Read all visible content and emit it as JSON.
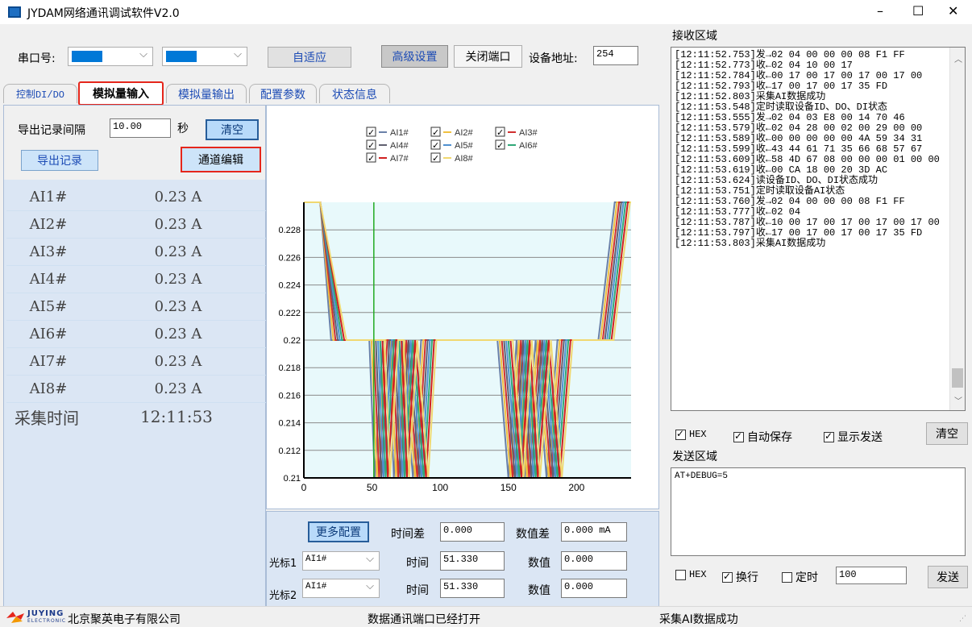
{
  "window": {
    "title": "JYDAM网络通讯调试软件V2.0",
    "minimize": "–",
    "maximize": "☐",
    "close": "✕"
  },
  "toolbar": {
    "port_label": "串口号:",
    "adapt_btn": "自适应",
    "advanced_btn": "高级设置",
    "close_port_btn": "关闭端口",
    "device_addr_label": "设备地址:",
    "device_addr": "254"
  },
  "tabs": [
    {
      "label": "控制DI/DO"
    },
    {
      "label": "模拟量输入"
    },
    {
      "label": "模拟量输出"
    },
    {
      "label": "配置参数"
    },
    {
      "label": "状态信息"
    }
  ],
  "left": {
    "interval_label": "导出记录间隔",
    "interval_value": "10.00",
    "interval_unit": "秒",
    "clear_btn": "清空",
    "export_btn": "导出记录",
    "channel_edit_btn": "通道编辑",
    "rows": [
      {
        "name": "AI1#",
        "value": "0.23 A"
      },
      {
        "name": "AI2#",
        "value": "0.23 A"
      },
      {
        "name": "AI3#",
        "value": "0.23 A"
      },
      {
        "name": "AI4#",
        "value": "0.23 A"
      },
      {
        "name": "AI5#",
        "value": "0.23 A"
      },
      {
        "name": "AI6#",
        "value": "0.23 A"
      },
      {
        "name": "AI7#",
        "value": "0.23 A"
      },
      {
        "name": "AI8#",
        "value": "0.23 A"
      }
    ],
    "time_label": "采集时间",
    "time_value": "12:11:53"
  },
  "chart_data": {
    "type": "line",
    "xlim": [
      0,
      240
    ],
    "ylim": [
      0.21,
      0.23
    ],
    "y_ticks": [
      "0.228",
      "0.226",
      "0.224",
      "0.222",
      "0.22",
      "0.218",
      "0.216",
      "0.214",
      "0.212",
      "0.21"
    ],
    "x_ticks": [
      "0",
      "50",
      "100",
      "150",
      "200"
    ],
    "legend": [
      {
        "name": "AI1#",
        "color": "#6a80a8"
      },
      {
        "name": "AI2#",
        "color": "#f0c040"
      },
      {
        "name": "AI3#",
        "color": "#d03030"
      },
      {
        "name": "AI4#",
        "color": "#606070"
      },
      {
        "name": "AI5#",
        "color": "#5090d0"
      },
      {
        "name": "AI6#",
        "color": "#30a878"
      },
      {
        "name": "AI7#",
        "color": "#d02020"
      },
      {
        "name": "AI8#",
        "color": "#f0d870"
      }
    ],
    "cursor_x": 51.33
  },
  "bottom": {
    "more_btn": "更多配置",
    "timediff_label": "时间差",
    "timediff_value": "0.000",
    "valdiff_label": "数值差",
    "valdiff_value": "0.000 mA",
    "cursor1_label": "光标1",
    "cursor1_sel": "AI1#",
    "time1_label": "时间",
    "time1_value": "51.330",
    "val1_label": "数值",
    "val1_value": "0.000",
    "cursor2_label": "光标2",
    "cursor2_sel": "AI1#",
    "time2_label": "时间",
    "time2_value": "51.330",
    "val2_label": "数值",
    "val2_value": "0.000"
  },
  "receive": {
    "title": "接收区域",
    "lines": [
      "[12:11:52.753]发→02 04 00 00 00 08 F1 FF",
      "[12:11:52.773]收←02 04 10 00 17",
      "[12:11:52.784]收←00 17 00 17 00 17 00 17 00",
      "[12:11:52.793]收←17 00 17 00 17 35 FD",
      "[12:11:52.803]采集AI数据成功",
      "[12:11:53.548]定时读取设备ID、DO、DI状态",
      "[12:11:53.555]发→02 04 03 E8 00 14 70 46",
      "[12:11:53.579]收←02 04 28 00 02 00 29 00 00",
      "[12:11:53.589]收←00 00 00 00 00 4A 59 34 31",
      "[12:11:53.599]收←43 44 61 71 35 66 68 57 67",
      "[12:11:53.609]收←58 4D 67 08 00 00 00 01 00 00",
      "[12:11:53.619]收←00 CA 18 00 20 3D AC",
      "[12:11:53.624]读设备ID、DO、DI状态成功",
      "[12:11:53.751]定时读取设备AI状态",
      "[12:11:53.760]发→02 04 00 00 00 08 F1 FF",
      "[12:11:53.777]收←02 04",
      "[12:11:53.787]收←10 00 17 00 17 00 17 00 17 00",
      "[12:11:53.797]收←17 00 17 00 17 00 17 35 FD",
      "[12:11:53.803]采集AI数据成功"
    ],
    "hex_label": "HEX",
    "autosave_label": "自动保存",
    "show_send_label": "显示发送",
    "clear_btn": "清空"
  },
  "send": {
    "title": "发送区域",
    "text": "AT+DEBUG=5",
    "hex_label": "HEX",
    "newline_label": "换行",
    "timer_label": "定时",
    "timer_value": "100",
    "send_btn": "发送"
  },
  "status": {
    "company_brand": "JUYING",
    "company_sub": "ELECTRONIC",
    "company": "北京聚英电子有限公司",
    "port_status": "数据通讯端口已经打开",
    "ai_status": "采集AI数据成功"
  }
}
